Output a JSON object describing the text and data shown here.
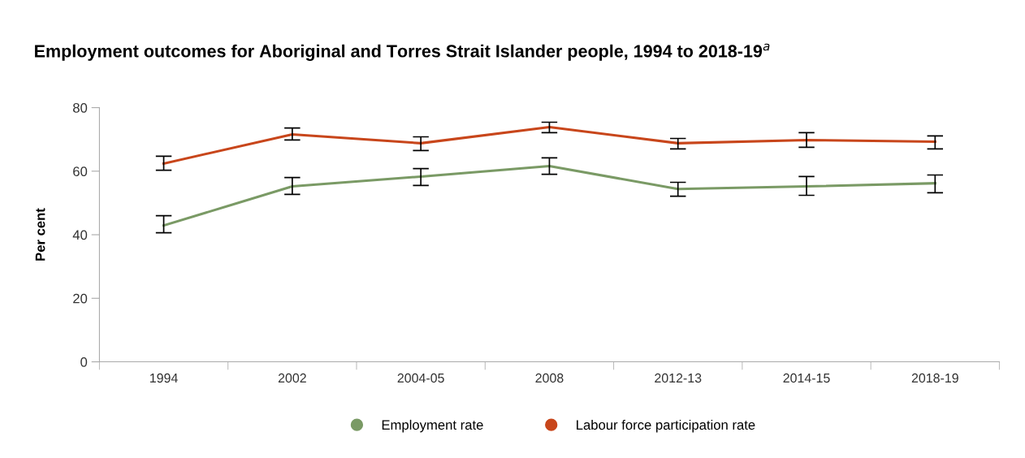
{
  "chart_data": {
    "type": "line",
    "title": "Employment outcomes for Aboriginal and Torres Strait Islander people, 1994 to 2018-19$^{a}$",
    "ylabel": "Per cent",
    "categories": [
      "1994",
      "2002",
      "2004-05",
      "2008",
      "2012-13",
      "2014-15",
      "2018-19"
    ],
    "series": [
      {
        "name": "Employment rate",
        "color": "#7a9a65",
        "values": [
          42.9,
          55.2,
          58.3,
          61.6,
          54.4,
          55.2,
          56.2
        ],
        "errors": [
          [
            40.6,
            46.0
          ],
          [
            52.7,
            58.0
          ],
          [
            55.5,
            60.8
          ],
          [
            59.0,
            64.2
          ],
          [
            52.1,
            56.5
          ],
          [
            52.4,
            58.3
          ],
          [
            53.2,
            58.8
          ]
        ]
      },
      {
        "name": "Labour force participation rate",
        "color": "#c8461b",
        "values": [
          62.4,
          71.6,
          68.8,
          73.9,
          68.8,
          69.8,
          69.3
        ],
        "errors": [
          [
            60.3,
            64.7
          ],
          [
            69.8,
            73.6
          ],
          [
            66.5,
            70.8
          ],
          [
            72.1,
            75.4
          ],
          [
            67.0,
            70.3
          ],
          [
            67.5,
            72.1
          ],
          [
            67.0,
            71.1
          ]
        ]
      }
    ],
    "ylim": [
      0,
      80
    ],
    "yticks": [
      0,
      20,
      40,
      60,
      80
    ],
    "grid": false,
    "legend": "bottom",
    "marker": "none",
    "line_style": "solid"
  }
}
